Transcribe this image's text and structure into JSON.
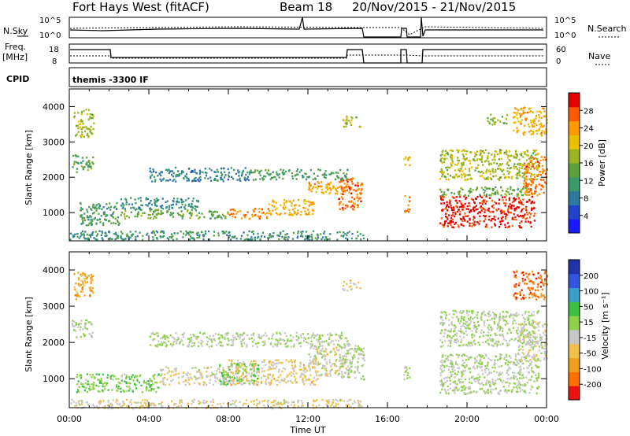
{
  "header": {
    "station": "Fort Hays West (fitACF)",
    "beam": "Beam 18",
    "dates": "20/Nov/2015 - 21/Nov/2015"
  },
  "strips": {
    "nsky_label": "N.Sky",
    "nsky_ticks": [
      "10^5",
      "10^0"
    ],
    "nsearch_label": "N.Search",
    "nsearch_ticks": [
      "10^5",
      "10^0"
    ],
    "freq_label": "Freq.",
    "freq_unit": "[MHz]",
    "freq_ticks": [
      "18",
      "8"
    ],
    "nave_label": "Nave",
    "nave_ticks": [
      "60",
      "0"
    ],
    "cpid_label": "CPID",
    "cpid_value": "themis -3300 IF"
  },
  "axes": {
    "ylabel": "Slant Range [km]",
    "xlabel": "Time UT",
    "yticks": [
      "1000",
      "2000",
      "3000",
      "4000"
    ],
    "xticks": [
      "00:00",
      "04:00",
      "08:00",
      "12:00",
      "16:00",
      "20:00",
      "00:00"
    ]
  },
  "colorbars": {
    "power_label": "Power [dB]",
    "power_ticks": [
      "4",
      "8",
      "12",
      "16",
      "20",
      "24",
      "28"
    ],
    "velocity_label": "Velocity [m s⁻¹]",
    "velocity_ticks": [
      "200",
      "100",
      "50",
      "15",
      "-15",
      "-50",
      "-100",
      "-200"
    ]
  },
  "chart_data": {
    "type": "heatmap",
    "x_unit": "hours UT",
    "xlim": [
      0,
      24
    ],
    "ylim": [
      200,
      4500
    ],
    "power_scale_dB": [
      0,
      32
    ],
    "velocity_scale": [
      -250,
      250
    ],
    "power_colors": [
      "#1a1aff",
      "#2244cc",
      "#2e7a9e",
      "#3a9a6a",
      "#5aa03c",
      "#9cb51e",
      "#e8c000",
      "#ff9a00",
      "#ff5a00",
      "#e60000"
    ],
    "velocity_colors": [
      "#2233aa",
      "#3355dd",
      "#3aa0c8",
      "#3dc040",
      "#8fd14a",
      "#c8c8c8",
      "#f0c24a",
      "#f0a020",
      "#ff7000",
      "#ee1010"
    ],
    "panels": [
      {
        "name": "power",
        "echo_regions": [
          {
            "t0": 0.2,
            "t1": 1.2,
            "r0": 3150,
            "r1": 3950,
            "val": 18
          },
          {
            "t0": 0.1,
            "t1": 1.2,
            "r0": 2150,
            "r1": 2650,
            "val": 14
          },
          {
            "t0": 0.5,
            "t1": 2.5,
            "r0": 650,
            "r1": 1300,
            "val": 12
          },
          {
            "t0": 2.5,
            "t1": 6.5,
            "r0": 1100,
            "r1": 1450,
            "val": 10
          },
          {
            "t0": 2.5,
            "t1": 8.0,
            "r0": 850,
            "r1": 1100,
            "val": 15
          },
          {
            "t0": 8.0,
            "t1": 10.0,
            "r0": 850,
            "r1": 1150,
            "val": 25
          },
          {
            "t0": 10.0,
            "t1": 12.3,
            "r0": 950,
            "r1": 1400,
            "val": 22
          },
          {
            "t0": 12.0,
            "t1": 13.8,
            "r0": 1550,
            "r1": 1900,
            "val": 23
          },
          {
            "t0": 13.5,
            "t1": 14.7,
            "r0": 1100,
            "r1": 2000,
            "val": 27
          },
          {
            "t0": 0.0,
            "t1": 14.8,
            "r0": 250,
            "r1": 500,
            "val": 11
          },
          {
            "t0": 4.0,
            "t1": 9.0,
            "r0": 1900,
            "r1": 2300,
            "val": 9
          },
          {
            "t0": 9.0,
            "t1": 14.0,
            "r0": 1950,
            "r1": 2250,
            "val": 12
          },
          {
            "t0": 16.8,
            "t1": 17.1,
            "r0": 1000,
            "r1": 1500,
            "val": 26
          },
          {
            "t0": 16.8,
            "t1": 17.1,
            "r0": 2300,
            "r1": 2600,
            "val": 22
          },
          {
            "t0": 18.6,
            "t1": 23.4,
            "r0": 600,
            "r1": 1500,
            "val": 30
          },
          {
            "t0": 18.6,
            "t1": 23.4,
            "r0": 1500,
            "r1": 1750,
            "val": 15
          },
          {
            "t0": 18.6,
            "t1": 23.6,
            "r0": 1950,
            "r1": 2800,
            "val": 18
          },
          {
            "t0": 22.8,
            "t1": 24.0,
            "r0": 1500,
            "r1": 2600,
            "val": 26
          },
          {
            "t0": 22.3,
            "t1": 24.0,
            "r0": 3200,
            "r1": 4000,
            "val": 23
          },
          {
            "t0": 21.0,
            "t1": 22.0,
            "r0": 3500,
            "r1": 3800,
            "val": 16
          },
          {
            "t0": 13.7,
            "t1": 14.6,
            "r0": 3450,
            "r1": 3750,
            "val": 18
          }
        ]
      },
      {
        "name": "velocity",
        "echo_regions": [
          {
            "t0": 0.2,
            "t1": 1.2,
            "r0": 3200,
            "r1": 3950,
            "val": -120
          },
          {
            "t0": 0.1,
            "t1": 1.2,
            "r0": 2150,
            "r1": 2650,
            "val": 0
          },
          {
            "t0": 0.3,
            "t1": 4.5,
            "r0": 650,
            "r1": 1150,
            "val": 40
          },
          {
            "t0": 4.5,
            "t1": 8.0,
            "r0": 850,
            "r1": 1350,
            "val": -40
          },
          {
            "t0": 8.0,
            "t1": 12.5,
            "r0": 850,
            "r1": 1550,
            "val": -60
          },
          {
            "t0": 7.5,
            "t1": 9.5,
            "r0": 850,
            "r1": 1450,
            "val": 35
          },
          {
            "t0": 12.0,
            "t1": 14.0,
            "r0": 1100,
            "r1": 1900,
            "val": -30
          },
          {
            "t0": 13.5,
            "t1": 14.8,
            "r0": 1000,
            "r1": 2000,
            "val": 0
          },
          {
            "t0": 0.0,
            "t1": 14.8,
            "r0": 200,
            "r1": 450,
            "val": -40
          },
          {
            "t0": 4.0,
            "t1": 14.0,
            "r0": 1900,
            "r1": 2300,
            "val": 0
          },
          {
            "t0": 16.8,
            "t1": 17.1,
            "r0": 1000,
            "r1": 1500,
            "val": 0
          },
          {
            "t0": 18.6,
            "t1": 23.6,
            "r0": 600,
            "r1": 1700,
            "val": 0
          },
          {
            "t0": 18.6,
            "t1": 23.6,
            "r0": 1900,
            "r1": 2900,
            "val": 0
          },
          {
            "t0": 22.5,
            "t1": 24.0,
            "r0": 1500,
            "r1": 2600,
            "val": -30
          },
          {
            "t0": 22.3,
            "t1": 24.0,
            "r0": 3200,
            "r1": 4000,
            "val": -180
          },
          {
            "t0": 13.7,
            "t1": 14.6,
            "r0": 3450,
            "r1": 3750,
            "val": -60
          }
        ]
      }
    ]
  }
}
